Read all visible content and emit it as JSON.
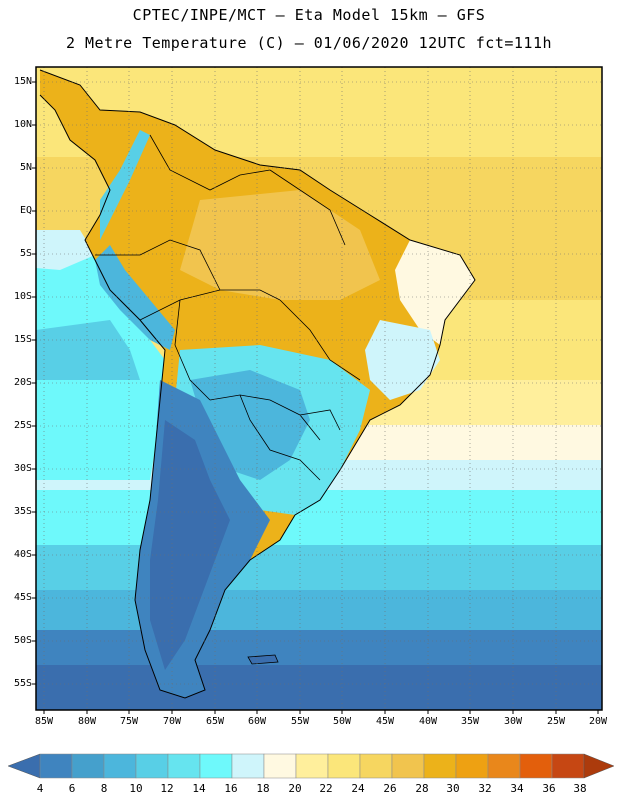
{
  "header": {
    "line1": "CPTEC/INPE/MCT –  Eta Model 15km – GFS",
    "line2": "2 Metre Temperature (C) – 01/06/2020 12UTC fct=111h"
  },
  "map": {
    "lon_range": [
      -86,
      -19
    ],
    "lat_range": [
      -58,
      17
    ],
    "lat_labels": [
      "15N",
      "10N",
      "5N",
      "EQ",
      "5S",
      "10S",
      "15S",
      "20S",
      "25S",
      "30S",
      "35S",
      "40S",
      "45S",
      "50S",
      "55S"
    ],
    "lon_labels": [
      "85W",
      "80W",
      "75W",
      "70W",
      "65W",
      "60W",
      "55W",
      "50W",
      "45W",
      "40W",
      "35W",
      "30W",
      "25W",
      "20W"
    ]
  },
  "colorbar": {
    "ticks": [
      "4",
      "6",
      "8",
      "10",
      "12",
      "14",
      "16",
      "18",
      "20",
      "22",
      "24",
      "26",
      "28",
      "30",
      "32",
      "34",
      "36",
      "38"
    ],
    "colors": [
      "#3a6eae",
      "#3f84bf",
      "#45a0cc",
      "#4cb6dc",
      "#58cfe6",
      "#66e4ef",
      "#6ef9fb",
      "#cff5fb",
      "#fff9e1",
      "#ffef9c",
      "#fbe67a",
      "#f6d660",
      "#f1c44e",
      "#ecb21a",
      "#eea112",
      "#e9871b",
      "#e35f0c",
      "#c64713",
      "#ac3b0c"
    ]
  },
  "colors": {
    "deep_ocean": "#2f6daf",
    "land_cold": "#3a6eae",
    "warm": "#f1c44e"
  }
}
